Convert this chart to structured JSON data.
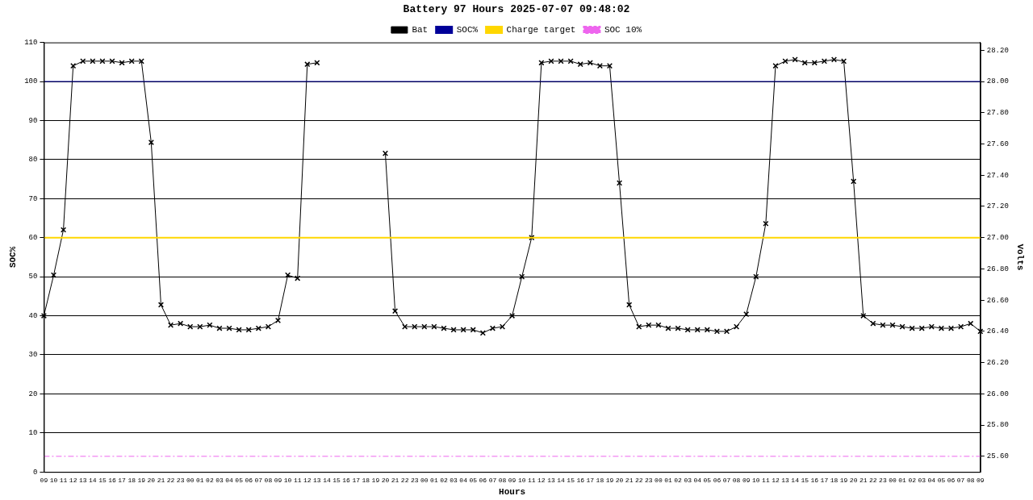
{
  "chart_data": {
    "type": "line",
    "title": "Battery 97 Hours 2025-07-07 09:48:02",
    "xlabel": "Hours",
    "ylabel": "SOC%",
    "y2label": "Volts",
    "categories": [
      "09",
      "10",
      "11",
      "12",
      "13",
      "14",
      "15",
      "16",
      "17",
      "18",
      "19",
      "20",
      "21",
      "22",
      "23",
      "00",
      "01",
      "02",
      "03",
      "04",
      "05",
      "06",
      "07",
      "08",
      "09",
      "10",
      "11",
      "12",
      "13",
      "14",
      "15",
      "16",
      "17",
      "18",
      "19",
      "20",
      "21",
      "22",
      "23",
      "00",
      "01",
      "02",
      "03",
      "04",
      "05",
      "06",
      "07",
      "08",
      "09",
      "10",
      "11",
      "12",
      "13",
      "14",
      "15",
      "16",
      "17",
      "18",
      "19",
      "20",
      "21",
      "22",
      "23",
      "00",
      "01",
      "02",
      "03",
      "04",
      "05",
      "06",
      "07",
      "08",
      "09",
      "10",
      "11",
      "12",
      "13",
      "14",
      "15",
      "16",
      "17",
      "18",
      "19",
      "20",
      "21",
      "22",
      "23",
      "00",
      "01",
      "02",
      "03",
      "04",
      "05",
      "06",
      "07",
      "08",
      "09"
    ],
    "series": [
      {
        "name": "Bat",
        "color": "#000000",
        "axis": "y2",
        "marker": "cross",
        "values": [
          26.5,
          26.76,
          27.05,
          28.1,
          28.13,
          28.13,
          28.13,
          28.13,
          28.12,
          28.13,
          28.13,
          27.61,
          26.57,
          26.44,
          26.45,
          26.43,
          26.43,
          26.44,
          26.42,
          26.42,
          26.41,
          26.41,
          26.42,
          26.43,
          26.47,
          26.76,
          26.74,
          28.11,
          28.12,
          null,
          null,
          null,
          null,
          null,
          null,
          27.54,
          26.53,
          26.43,
          26.43,
          26.43,
          26.43,
          26.42,
          26.41,
          26.41,
          26.41,
          26.39,
          26.42,
          26.43,
          26.5,
          26.75,
          27.0,
          28.12,
          28.13,
          28.13,
          28.13,
          28.11,
          28.12,
          28.1,
          28.1,
          27.35,
          26.57,
          26.43,
          26.44,
          26.44,
          26.42,
          26.42,
          26.41,
          26.41,
          26.41,
          26.4,
          26.4,
          26.43,
          26.51,
          26.75,
          27.09,
          28.1,
          28.13,
          28.14,
          28.12,
          28.12,
          28.13,
          28.14,
          28.13,
          27.36,
          26.5,
          26.45,
          26.44,
          26.44,
          26.43,
          26.42,
          26.42,
          26.43,
          26.42,
          26.42,
          26.43,
          26.45,
          26.4
        ]
      }
    ],
    "ref_lines": [
      {
        "axis": "y",
        "value": 100,
        "label": "SOC%",
        "color": "#000099",
        "line_style": "solid"
      },
      {
        "axis": "y2",
        "value": 27.0,
        "label": "Charge target",
        "color": "#ffd700",
        "line_style": "solid"
      },
      {
        "axis": "y2",
        "value": 25.6,
        "label": "SOC 10%",
        "color": "#ee66ee",
        "line_style": "dashed"
      }
    ],
    "ylim": [
      0,
      110
    ],
    "yticks": [
      0,
      10,
      20,
      30,
      40,
      50,
      60,
      70,
      80,
      90,
      100,
      110
    ],
    "y2lim": [
      25.5,
      28.25
    ],
    "y2ticks": [
      {
        "value": 25.6,
        "label": "25.60"
      },
      {
        "value": 25.8,
        "label": "25.80"
      },
      {
        "value": 26.0,
        "label": "26.00"
      },
      {
        "value": 26.2,
        "label": "26.20"
      },
      {
        "value": 26.4,
        "label": "26.40"
      },
      {
        "value": 26.6,
        "label": "26.60"
      },
      {
        "value": 26.8,
        "label": "26.80"
      },
      {
        "value": 27.0,
        "label": "27.00"
      },
      {
        "value": 27.2,
        "label": "27.20"
      },
      {
        "value": 27.4,
        "label": "27.40"
      },
      {
        "value": 27.6,
        "label": "27.60"
      },
      {
        "value": 27.8,
        "label": "27.80"
      },
      {
        "value": 28.0,
        "label": "28.00"
      },
      {
        "value": 28.2,
        "label": "28.20"
      }
    ],
    "grid": "y",
    "legend": "top",
    "line_style": "solid"
  }
}
